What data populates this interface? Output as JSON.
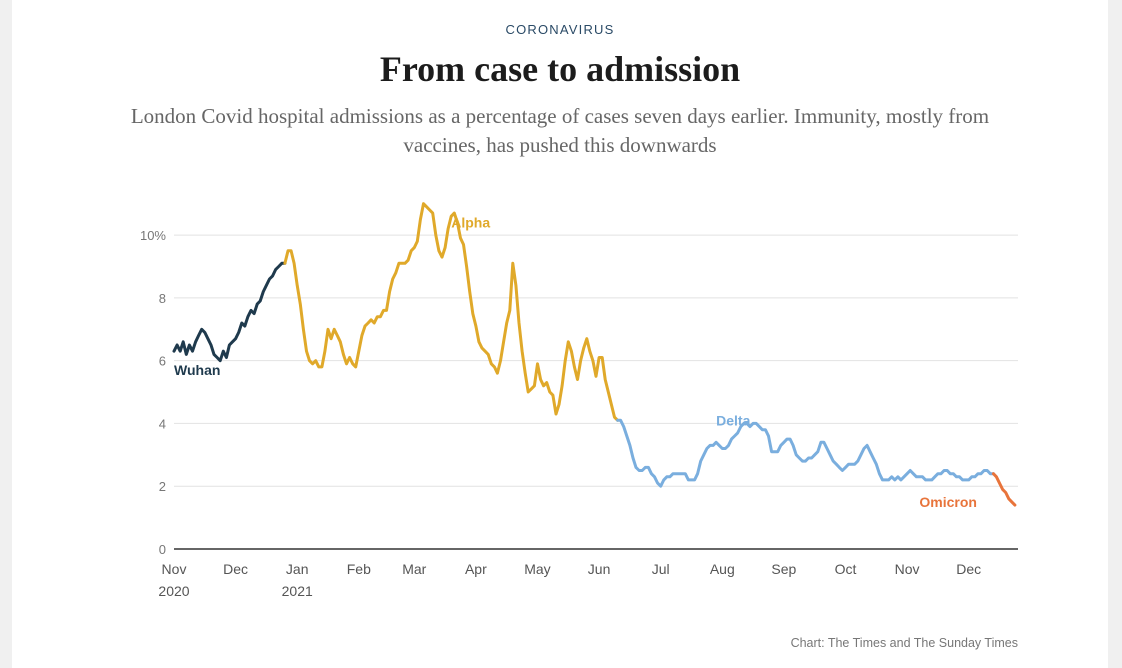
{
  "kicker": "CORONAVIRUS",
  "title": "From case to admission",
  "subtitle": "London Covid hospital admissions as a percentage of cases seven days earlier. Immunity, mostly from vaccines, has pushed this downwards",
  "source": "Chart: The Times and The Sunday Times",
  "colors": {
    "wuhan": "#1f3a4d",
    "alpha": "#e0a92a",
    "delta": "#7aaede",
    "omicron": "#e8743b",
    "grid": "#e2e2e2",
    "axis": "#333333"
  },
  "chart_data": {
    "type": "line",
    "title": "From case to admission",
    "xlabel": "",
    "ylabel": "%",
    "ylim": [
      0,
      11.5
    ],
    "xlim": [
      0,
      13.7
    ],
    "x_unit": "months since 1 Nov 2020",
    "y_ticks": [
      {
        "value": 0,
        "label": "0"
      },
      {
        "value": 2,
        "label": "2"
      },
      {
        "value": 4,
        "label": "4"
      },
      {
        "value": 6,
        "label": "6"
      },
      {
        "value": 8,
        "label": "8"
      },
      {
        "value": 10,
        "label": "10%"
      }
    ],
    "x_ticks": [
      {
        "value": 0,
        "label": "Nov",
        "year": "2020"
      },
      {
        "value": 1,
        "label": "Dec",
        "year": ""
      },
      {
        "value": 2,
        "label": "Jan",
        "year": "2021"
      },
      {
        "value": 3,
        "label": "Feb",
        "year": ""
      },
      {
        "value": 3.9,
        "label": "Mar",
        "year": ""
      },
      {
        "value": 4.9,
        "label": "Apr",
        "year": ""
      },
      {
        "value": 5.9,
        "label": "May",
        "year": ""
      },
      {
        "value": 6.9,
        "label": "Jun",
        "year": ""
      },
      {
        "value": 7.9,
        "label": "Jul",
        "year": ""
      },
      {
        "value": 8.9,
        "label": "Aug",
        "year": ""
      },
      {
        "value": 9.9,
        "label": "Sep",
        "year": ""
      },
      {
        "value": 10.9,
        "label": "Oct",
        "year": ""
      },
      {
        "value": 11.9,
        "label": "Nov",
        "year": ""
      },
      {
        "value": 12.9,
        "label": "Dec",
        "year": ""
      }
    ],
    "series": [
      {
        "name": "Wuhan",
        "color_key": "wuhan",
        "label_at": [
          0.0,
          5.7
        ],
        "x": [
          0.0,
          0.05,
          0.1,
          0.15,
          0.2,
          0.25,
          0.3,
          0.35,
          0.4,
          0.45,
          0.5,
          0.55,
          0.6,
          0.65,
          0.7,
          0.75,
          0.8,
          0.85,
          0.9,
          0.95,
          1.0,
          1.05,
          1.1,
          1.15,
          1.2,
          1.25,
          1.3,
          1.35,
          1.4,
          1.45,
          1.5,
          1.55,
          1.6,
          1.65,
          1.7,
          1.75,
          1.8
        ],
        "values": [
          6.3,
          6.5,
          6.3,
          6.6,
          6.2,
          6.5,
          6.3,
          6.6,
          6.8,
          7.0,
          6.9,
          6.7,
          6.5,
          6.2,
          6.1,
          6.0,
          6.3,
          6.1,
          6.5,
          6.6,
          6.7,
          6.9,
          7.2,
          7.1,
          7.4,
          7.6,
          7.5,
          7.8,
          7.9,
          8.2,
          8.4,
          8.6,
          8.7,
          8.9,
          9.0,
          9.1,
          9.1
        ]
      },
      {
        "name": "Alpha",
        "color_key": "alpha",
        "label_at": [
          4.5,
          10.4
        ],
        "x": [
          1.8,
          1.85,
          1.9,
          1.95,
          2.0,
          2.05,
          2.1,
          2.15,
          2.2,
          2.25,
          2.3,
          2.35,
          2.4,
          2.45,
          2.5,
          2.55,
          2.6,
          2.65,
          2.7,
          2.75,
          2.8,
          2.85,
          2.9,
          2.95,
          3.0,
          3.05,
          3.1,
          3.15,
          3.2,
          3.25,
          3.3,
          3.35,
          3.4,
          3.45,
          3.5,
          3.55,
          3.6,
          3.65,
          3.7,
          3.75,
          3.8,
          3.85,
          3.9,
          3.95,
          4.0,
          4.05,
          4.1,
          4.15,
          4.2,
          4.25,
          4.3,
          4.35,
          4.4,
          4.45,
          4.5,
          4.55,
          4.6,
          4.65,
          4.7,
          4.75,
          4.8,
          4.85,
          4.9,
          4.95,
          5.0,
          5.05,
          5.1,
          5.15,
          5.2,
          5.25,
          5.3,
          5.35,
          5.4,
          5.45,
          5.5,
          5.55,
          5.6,
          5.65,
          5.7,
          5.75,
          5.8,
          5.85,
          5.9,
          5.95,
          6.0,
          6.05,
          6.1,
          6.15,
          6.2,
          6.25,
          6.3,
          6.35,
          6.4,
          6.45,
          6.5,
          6.55,
          6.6,
          6.65,
          6.7,
          6.75,
          6.8,
          6.85,
          6.9,
          6.95,
          7.0,
          7.05,
          7.1,
          7.15,
          7.2
        ],
        "values": [
          9.1,
          9.5,
          9.5,
          9.1,
          8.4,
          7.8,
          7.0,
          6.3,
          6.0,
          5.9,
          6.0,
          5.8,
          5.8,
          6.3,
          7.0,
          6.7,
          7.0,
          6.8,
          6.6,
          6.2,
          5.9,
          6.1,
          5.9,
          5.8,
          6.3,
          6.8,
          7.1,
          7.2,
          7.3,
          7.2,
          7.4,
          7.4,
          7.6,
          7.6,
          8.2,
          8.6,
          8.8,
          9.1,
          9.1,
          9.1,
          9.2,
          9.5,
          9.6,
          9.8,
          10.5,
          11.0,
          10.9,
          10.8,
          10.7,
          10.0,
          9.5,
          9.3,
          9.6,
          10.2,
          10.6,
          10.7,
          10.4,
          9.9,
          9.7,
          9.0,
          8.2,
          7.5,
          7.1,
          6.6,
          6.4,
          6.3,
          6.2,
          5.9,
          5.8,
          5.6,
          6.0,
          6.6,
          7.2,
          7.6,
          9.1,
          8.4,
          7.2,
          6.3,
          5.6,
          5.0,
          5.1,
          5.2,
          5.9,
          5.4,
          5.2,
          5.3,
          5.0,
          4.9,
          4.3,
          4.6,
          5.2,
          6.0,
          6.6,
          6.3,
          5.8,
          5.4,
          6.0,
          6.4,
          6.7,
          6.3,
          6.0,
          5.5,
          6.1,
          6.1,
          5.4,
          5.0,
          4.6,
          4.2,
          4.1
        ]
      },
      {
        "name": "Delta",
        "color_key": "delta",
        "label_at": [
          8.8,
          4.1
        ],
        "x": [
          7.2,
          7.25,
          7.3,
          7.35,
          7.4,
          7.45,
          7.5,
          7.55,
          7.6,
          7.65,
          7.7,
          7.75,
          7.8,
          7.85,
          7.9,
          7.95,
          8.0,
          8.05,
          8.1,
          8.15,
          8.2,
          8.25,
          8.3,
          8.35,
          8.4,
          8.45,
          8.5,
          8.55,
          8.6,
          8.65,
          8.7,
          8.75,
          8.8,
          8.85,
          8.9,
          8.95,
          9.0,
          9.05,
          9.1,
          9.15,
          9.2,
          9.25,
          9.3,
          9.35,
          9.4,
          9.45,
          9.5,
          9.55,
          9.6,
          9.65,
          9.7,
          9.75,
          9.8,
          9.85,
          9.9,
          9.95,
          10.0,
          10.05,
          10.1,
          10.15,
          10.2,
          10.25,
          10.3,
          10.35,
          10.4,
          10.45,
          10.5,
          10.55,
          10.6,
          10.65,
          10.7,
          10.75,
          10.8,
          10.85,
          10.9,
          10.95,
          11.0,
          11.05,
          11.1,
          11.15,
          11.2,
          11.25,
          11.3,
          11.35,
          11.4,
          11.45,
          11.5,
          11.55,
          11.6,
          11.65,
          11.7,
          11.75,
          11.8,
          11.85,
          11.9,
          11.95,
          12.0,
          12.05,
          12.1,
          12.15,
          12.2,
          12.25,
          12.3,
          12.35,
          12.4,
          12.45,
          12.5,
          12.55,
          12.6,
          12.65,
          12.7,
          12.75,
          12.8,
          12.85,
          12.9,
          12.95,
          13.0,
          13.05,
          13.1,
          13.15,
          13.2,
          13.25,
          13.3
        ],
        "values": [
          4.1,
          4.1,
          3.9,
          3.6,
          3.3,
          2.9,
          2.6,
          2.5,
          2.5,
          2.6,
          2.6,
          2.4,
          2.3,
          2.1,
          2.0,
          2.2,
          2.3,
          2.3,
          2.4,
          2.4,
          2.4,
          2.4,
          2.4,
          2.2,
          2.2,
          2.2,
          2.4,
          2.8,
          3.0,
          3.2,
          3.3,
          3.3,
          3.4,
          3.3,
          3.2,
          3.2,
          3.3,
          3.5,
          3.6,
          3.7,
          3.9,
          4.0,
          4.0,
          3.9,
          4.0,
          4.0,
          3.9,
          3.8,
          3.8,
          3.6,
          3.1,
          3.1,
          3.1,
          3.3,
          3.4,
          3.5,
          3.5,
          3.3,
          3.0,
          2.9,
          2.8,
          2.8,
          2.9,
          2.9,
          3.0,
          3.1,
          3.4,
          3.4,
          3.2,
          3.0,
          2.8,
          2.7,
          2.6,
          2.5,
          2.6,
          2.7,
          2.7,
          2.7,
          2.8,
          3.0,
          3.2,
          3.3,
          3.1,
          2.9,
          2.7,
          2.4,
          2.2,
          2.2,
          2.2,
          2.3,
          2.2,
          2.3,
          2.2,
          2.3,
          2.4,
          2.5,
          2.4,
          2.3,
          2.3,
          2.3,
          2.2,
          2.2,
          2.2,
          2.3,
          2.4,
          2.4,
          2.5,
          2.5,
          2.4,
          2.4,
          2.3,
          2.3,
          2.2,
          2.2,
          2.2,
          2.3,
          2.3,
          2.4,
          2.4,
          2.5,
          2.5,
          2.4,
          2.4
        ],
        "_note": "delta plotted to 12.9 region"
      },
      {
        "name": "Omicron",
        "color_key": "omicron",
        "label_at": [
          12.1,
          1.5
        ],
        "x": [
          13.3,
          13.35,
          13.4,
          13.45,
          13.5,
          13.55,
          13.6,
          13.65
        ],
        "values": [
          2.4,
          2.3,
          2.1,
          1.9,
          1.8,
          1.6,
          1.5,
          1.4
        ]
      }
    ]
  }
}
